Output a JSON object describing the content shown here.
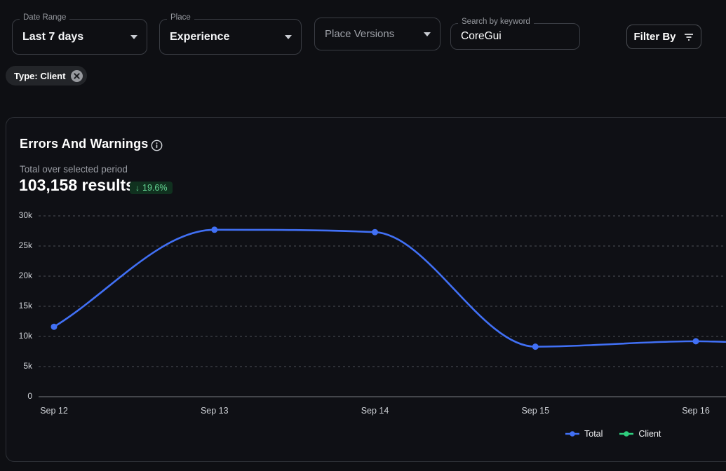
{
  "filters": {
    "date_range": {
      "label": "Date Range",
      "value": "Last 7 days"
    },
    "place": {
      "label": "Place",
      "value": "Experience"
    },
    "place_versions": {
      "value": "Place Versions"
    },
    "search": {
      "label": "Search by keyword",
      "value": "CoreGui"
    },
    "filter_by_label": "Filter By"
  },
  "active_filter_chip": {
    "label": "Type: Client"
  },
  "panel": {
    "title": "Errors And Warnings",
    "subtitle": "Total over selected period",
    "total_text": "103,158 results",
    "change": {
      "arrow": "↓",
      "value": "19.6%",
      "badge_bg": "#10311f",
      "badge_text": "#65d694"
    }
  },
  "chart_data": {
    "type": "line",
    "title": "Errors And Warnings",
    "x_labels": [
      "Sep 12",
      "Sep 13",
      "Sep 14",
      "Sep 15",
      "Sep 16"
    ],
    "y_ticks": [
      "0",
      "5k",
      "10k",
      "15k",
      "20k",
      "25k",
      "30k"
    ],
    "y_max": 30000,
    "grid": "horizontal-dashed",
    "legend_position": "bottom",
    "series": [
      {
        "name": "Total",
        "color": "#4170f5",
        "values": [
          11600,
          27700,
          27300,
          8300,
          9200
        ],
        "right_edge_value": 9100
      },
      {
        "name": "Client",
        "color": "#2fce7e",
        "values": []
      }
    ]
  }
}
